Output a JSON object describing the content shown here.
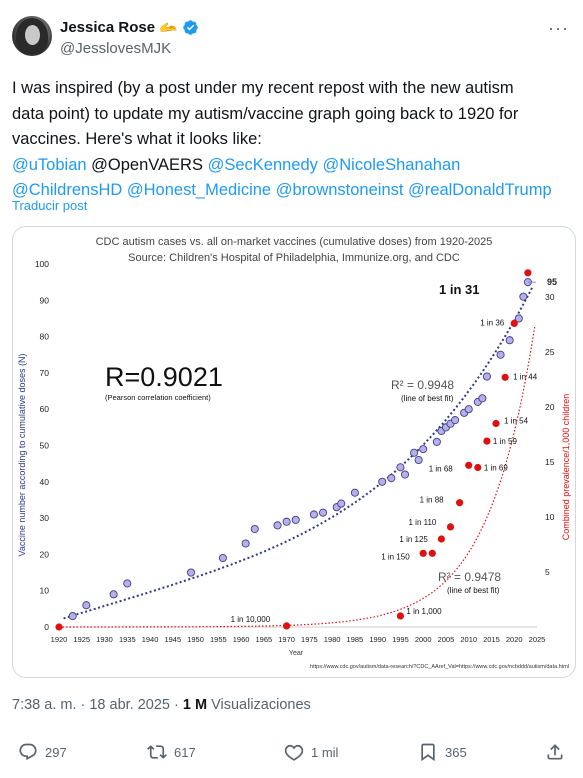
{
  "author": {
    "name": "Jessica Rose",
    "emoji": "🫴",
    "handle": "@JesslovesMJK"
  },
  "post": {
    "text_lines": [
      "I was inspired (by a post under my recent repost with the new autism",
      "data point) to update my autism/vaccine graph going back to 1920 for",
      "vaccines. Here's what it looks like:"
    ],
    "mentions_line1": [
      "@uTobian",
      "@OpenVAERS",
      "@SecKennedy",
      "@NicoleShanahan"
    ],
    "mentions_line2": [
      "@ChildrensHD",
      "@Honest_Medicine",
      "@brownstoneinst",
      "@realDonaldTrump"
    ],
    "translate": "Traducir post",
    "time": "7:38 a. m. · 18 abr. 2025 · ",
    "views_count": "1 M",
    "views_label": " Visualizaciones"
  },
  "actions": {
    "replies": "297",
    "reposts": "617",
    "likes": "1 mil",
    "bookmarks": "365"
  },
  "colors": {
    "accent": "#1d9bf0",
    "secondary_text": "#536471",
    "vaccine_series": "#2d3a8c",
    "autism_series": "#e01010"
  },
  "chart_data": {
    "type": "scatter",
    "title": "CDC autism cases vs. all on-market vaccines (cumulative doses) from 1920-2025",
    "subtitle": "Source: Children's Hospital of Philadelphia, Immunize.org, and CDC",
    "xlabel": "Year",
    "ylabel": "Vaccine number according to cumulative doses (N)",
    "ylabel_right": "Combined prevalence/1,000 children",
    "x_ticks": [
      1920,
      1925,
      1930,
      1935,
      1940,
      1945,
      1950,
      1955,
      1960,
      1965,
      1970,
      1975,
      1980,
      1985,
      1990,
      1995,
      2000,
      2005,
      2010,
      2015,
      2020,
      2025
    ],
    "y_ticks": [
      0,
      10,
      20,
      30,
      40,
      50,
      60,
      70,
      80,
      90,
      100
    ],
    "y2_ticks": [
      5,
      10,
      15,
      20,
      25,
      30
    ],
    "xlim": [
      1920,
      2025
    ],
    "ylim": [
      0,
      100
    ],
    "y2lim": [
      0,
      33
    ],
    "correlation": "R=0.9021",
    "correlation_note": "(Pearson correlation coefficient)",
    "annotation_top": "1 in 31",
    "annotation_end": "95",
    "series": [
      {
        "name": "vaccines",
        "axis": "left",
        "fit_label": "R² = 0.9948",
        "fit_note": "(line of best fit)",
        "points": [
          [
            1923,
            3
          ],
          [
            1926,
            6
          ],
          [
            1932,
            9
          ],
          [
            1935,
            12
          ],
          [
            1949,
            15
          ],
          [
            1956,
            19
          ],
          [
            1961,
            23
          ],
          [
            1963,
            27
          ],
          [
            1968,
            28
          ],
          [
            1970,
            29
          ],
          [
            1972,
            29.5
          ],
          [
            1976,
            31
          ],
          [
            1978,
            31.5
          ],
          [
            1981,
            33
          ],
          [
            1982,
            34
          ],
          [
            1985,
            37
          ],
          [
            1991,
            40
          ],
          [
            1993,
            41
          ],
          [
            1995,
            44
          ],
          [
            1996,
            42
          ],
          [
            1998,
            48
          ],
          [
            1999,
            46
          ],
          [
            2000,
            49
          ],
          [
            2003,
            51
          ],
          [
            2004,
            54
          ],
          [
            2005,
            55
          ],
          [
            2006,
            56
          ],
          [
            2007,
            57
          ],
          [
            2009,
            59
          ],
          [
            2010,
            60
          ],
          [
            2012,
            62
          ],
          [
            2013,
            63
          ],
          [
            2014,
            69
          ],
          [
            2017,
            75
          ],
          [
            2019,
            79
          ],
          [
            2021,
            85
          ],
          [
            2022,
            91
          ],
          [
            2023,
            95
          ]
        ]
      },
      {
        "name": "autism",
        "axis": "right",
        "fit_label": "R² = 0.9478",
        "fit_note": "(line of best fit)",
        "points": [
          [
            1920,
            0
          ],
          [
            1970,
            0.1
          ],
          [
            1995,
            1
          ],
          [
            2000,
            6.7
          ],
          [
            2002,
            6.7
          ],
          [
            2004,
            8
          ],
          [
            2006,
            9.1
          ],
          [
            2008,
            11.3
          ],
          [
            2010,
            14.7
          ],
          [
            2012,
            14.5
          ],
          [
            2014,
            16.9
          ],
          [
            2016,
            18.5
          ],
          [
            2018,
            22.7
          ],
          [
            2020,
            27.6
          ],
          [
            2023,
            32.2
          ]
        ],
        "labels": [
          {
            "text": "1 in 10,000",
            "x": 1970,
            "y": 0.1
          },
          {
            "text": "1 in 1,000",
            "x": 1995,
            "y": 1
          },
          {
            "text": "1 in 150",
            "x": 2000,
            "y": 6.7
          },
          {
            "text": "1 in 125",
            "x": 2004,
            "y": 8
          },
          {
            "text": "1 in 110",
            "x": 2006,
            "y": 9.1
          },
          {
            "text": "1 in 88",
            "x": 2008,
            "y": 11.3
          },
          {
            "text": "1 in 68",
            "x": 2010,
            "y": 14.7
          },
          {
            "text": "1 in 69",
            "x": 2012,
            "y": 14.5
          },
          {
            "text": "1 in 59",
            "x": 2014,
            "y": 16.9
          },
          {
            "text": "1 in 54",
            "x": 2016,
            "y": 18.5
          },
          {
            "text": "1 in 44",
            "x": 2018,
            "y": 22.7
          },
          {
            "text": "1 in 36",
            "x": 2020,
            "y": 27.6
          }
        ]
      }
    ],
    "footer_urls": "https://www.cdc.gov/autism/data-research/?CDC_AAref_Val=https://www.cdc.gov/ncbddd/autism/data.html",
    "grid": false
  }
}
